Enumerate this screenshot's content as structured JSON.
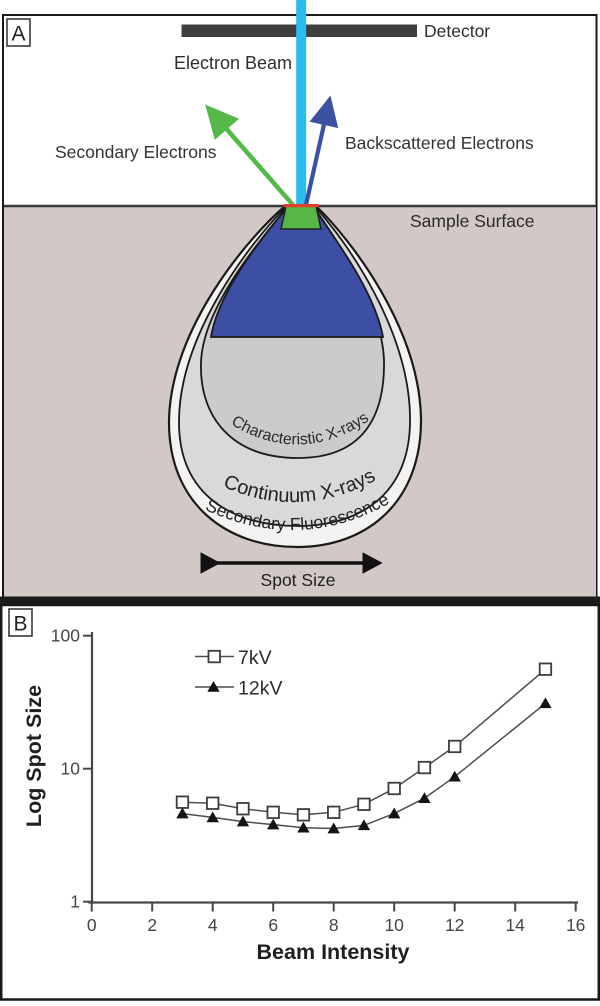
{
  "panel_a": {
    "label": "A",
    "detector": "Detector",
    "electron_beam": "Electron Beam",
    "secondary_electrons": "Secondary Electrons",
    "backscattered_electrons": "Backscattered Electrons",
    "sample_surface": "Sample Surface",
    "characteristic_xrays": "Characteristic X-rays",
    "continuum_xrays": "Continuum X-rays",
    "secondary_fluorescence": "Secondary Fluorescence",
    "spot_size": "Spot Size",
    "colors": {
      "electron_beam": "#2bbcee",
      "detector_bar": "#3f3f3f",
      "secondary_arrow": "#54b948",
      "backscatter_arrow": "#3d51a3",
      "sample_background": "#d2c9c7",
      "secondary_zone_green": "#56b747",
      "surface_line_red": "#e0402a",
      "backscatter_region_blue": "#3c4fa5",
      "characteristic_region_gray": "#cbcbcb",
      "continuum_region_gray": "#d9d9d9",
      "fluorescence_region_white": "#f4f3f1",
      "outline": "#1a1a1a"
    }
  },
  "panel_b": {
    "label": "B"
  },
  "chart_data": {
    "type": "line",
    "title": "",
    "xlabel": "Beam Intensity",
    "ylabel": "Log Spot Size",
    "y_scale": "log",
    "xlim": [
      0,
      16
    ],
    "ylim": [
      1,
      100
    ],
    "x_ticks": [
      0,
      2,
      4,
      6,
      8,
      10,
      12,
      14,
      16
    ],
    "y_ticks": [
      1,
      10,
      100
    ],
    "grid": false,
    "legend_position": "upper-left-inside",
    "x": [
      3,
      4,
      5,
      6,
      7,
      8,
      9,
      10,
      11,
      12,
      15
    ],
    "series": [
      {
        "name": "7kV",
        "marker": "open-square",
        "values": [
          5.6,
          5.5,
          5.0,
          4.7,
          4.5,
          4.7,
          5.4,
          7.1,
          10.2,
          14.7,
          56
        ]
      },
      {
        "name": "12kV",
        "marker": "filled-triangle",
        "values": [
          4.6,
          4.3,
          4.0,
          3.8,
          3.6,
          3.55,
          3.75,
          4.6,
          6.0,
          8.7,
          31
        ]
      }
    ]
  }
}
